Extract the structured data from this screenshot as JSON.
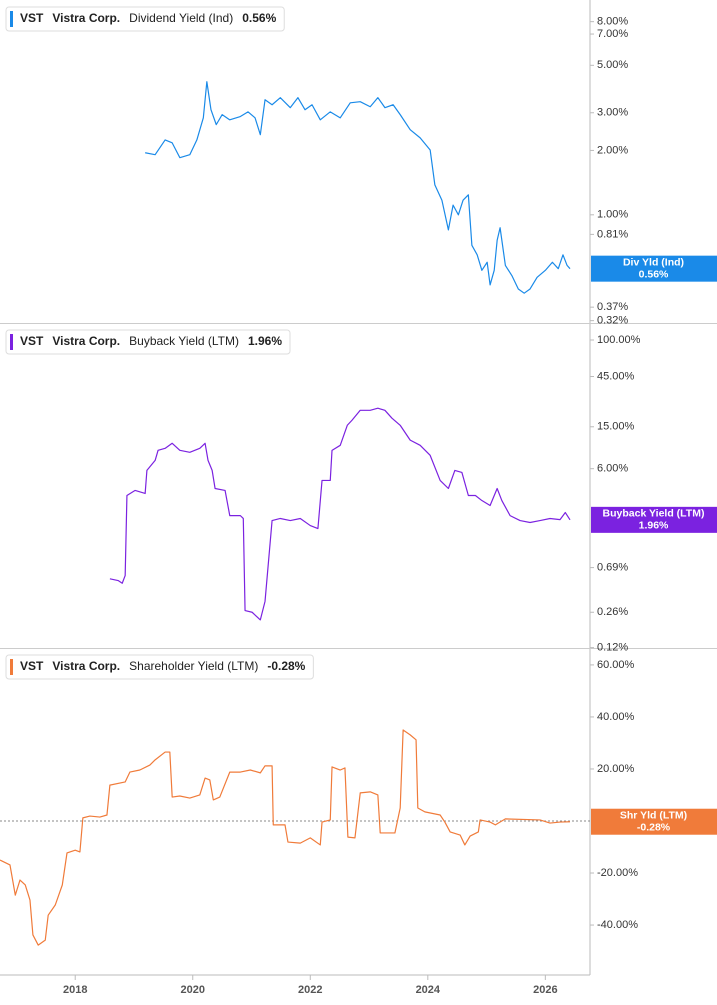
{
  "chart_data": [
    {
      "type": "line",
      "log_scale": true,
      "ticker": "VST",
      "company": "Vistra Corp.",
      "x": [
        2019.19,
        2019.36,
        2019.53,
        2019.65,
        2019.78,
        2019.95,
        2020.07,
        2020.18,
        2020.24,
        2020.31,
        2020.4,
        2020.5,
        2020.63,
        2020.81,
        2020.94,
        2021.06,
        2021.15,
        2021.23,
        2021.35,
        2021.49,
        2021.66,
        2021.79,
        2021.91,
        2022.03,
        2022.17,
        2022.34,
        2022.51,
        2022.68,
        2022.85,
        2023.02,
        2023.15,
        2023.27,
        2023.41,
        2023.53,
        2023.7,
        2023.87,
        2024.04,
        2024.12,
        2024.24,
        2024.35,
        2024.43,
        2024.52,
        2024.6,
        2024.69,
        2024.75,
        2024.84,
        2024.92,
        2025.01,
        2025.06,
        2025.13,
        2025.18,
        2025.23,
        2025.32,
        2025.43,
        2025.54,
        2025.64,
        2025.74,
        2025.86,
        2026.0,
        2026.12,
        2026.22,
        2026.3,
        2026.37,
        2026.42
      ],
      "series": [
        {
          "name": "Dividend Yield (Ind)",
          "color": "#1a8ae8",
          "values": [
            1.95,
            1.91,
            2.24,
            2.17,
            1.85,
            1.91,
            2.24,
            2.84,
            4.19,
            3.1,
            2.64,
            2.94,
            2.78,
            2.88,
            3.03,
            2.84,
            2.37,
            3.45,
            3.27,
            3.53,
            3.17,
            3.53,
            3.1,
            3.27,
            2.78,
            3.03,
            2.84,
            3.34,
            3.38,
            3.2,
            3.53,
            3.17,
            3.27,
            2.94,
            2.5,
            2.29,
            2.01,
            1.38,
            1.17,
            0.85,
            1.11,
            1.0,
            1.17,
            1.24,
            0.72,
            0.65,
            0.55,
            0.6,
            0.47,
            0.55,
            0.76,
            0.87,
            0.58,
            0.52,
            0.45,
            0.43,
            0.45,
            0.51,
            0.55,
            0.6,
            0.56,
            0.65,
            0.58,
            0.56
          ]
        }
      ],
      "badge": {
        "label": "Div Yld (Ind)",
        "value": 0.56,
        "value_label": "0.56%"
      },
      "xlim": [
        2016.72,
        2026.76
      ],
      "ylim": [
        0.312,
        10.1
      ],
      "yticks": [
        {
          "value": 8,
          "label": "8.00%"
        },
        {
          "value": 7,
          "label": "7.00%"
        },
        {
          "value": 5,
          "label": "5.00%"
        },
        {
          "value": 3,
          "label": "3.00%"
        },
        {
          "value": 2,
          "label": "2.00%"
        },
        {
          "value": 1,
          "label": "1.00%"
        },
        {
          "value": 0.81,
          "label": "0.81%"
        },
        {
          "value": 0.37,
          "label": "0.37%"
        },
        {
          "value": 0.32,
          "label": "0.32%"
        }
      ]
    },
    {
      "type": "line",
      "log_scale": true,
      "ticker": "VST",
      "company": "Vistra Corp.",
      "x": [
        2018.59,
        2018.73,
        2018.8,
        2018.85,
        2018.88,
        2019.02,
        2019.19,
        2019.22,
        2019.36,
        2019.41,
        2019.53,
        2019.65,
        2019.78,
        2019.95,
        2020.12,
        2020.21,
        2020.26,
        2020.33,
        2020.38,
        2020.55,
        2020.63,
        2020.81,
        2020.86,
        2020.89,
        2021.01,
        2021.15,
        2021.23,
        2021.35,
        2021.49,
        2021.66,
        2021.83,
        2022.0,
        2022.13,
        2022.2,
        2022.34,
        2022.37,
        2022.51,
        2022.63,
        2022.71,
        2022.85,
        2023.02,
        2023.15,
        2023.27,
        2023.39,
        2023.53,
        2023.7,
        2023.87,
        2024.04,
        2024.21,
        2024.35,
        2024.46,
        2024.58,
        2024.69,
        2024.81,
        2024.92,
        2025.06,
        2025.18,
        2025.26,
        2025.4,
        2025.57,
        2025.74,
        2025.91,
        2026.08,
        2026.25,
        2026.34,
        2026.42
      ],
      "series": [
        {
          "name": "Buyback Yield (LTM)",
          "color": "#7b22e0",
          "values": [
            0.54,
            0.52,
            0.49,
            0.58,
            3.34,
            3.73,
            3.49,
            5.78,
            7.19,
            8.96,
            9.36,
            10.45,
            8.96,
            8.58,
            9.36,
            10.45,
            7.19,
            5.78,
            3.89,
            3.73,
            2.15,
            2.15,
            2.02,
            0.27,
            0.26,
            0.22,
            0.33,
            1.93,
            2.02,
            1.93,
            2.02,
            1.73,
            1.62,
            4.64,
            4.64,
            8.96,
            10.0,
            15.5,
            17.3,
            21.5,
            21.5,
            22.5,
            21.5,
            18.1,
            15.5,
            11.2,
            10.0,
            8.03,
            4.64,
            3.89,
            5.78,
            5.53,
            3.34,
            3.34,
            2.99,
            2.68,
            3.89,
            2.99,
            2.15,
            1.93,
            1.85,
            1.93,
            2.02,
            1.97,
            2.3,
            1.96
          ]
        }
      ],
      "badge": {
        "label": "Buyback Yield (LTM)",
        "value": 1.96,
        "value_label": "1.96%"
      },
      "xlim": [
        2016.72,
        2026.76
      ],
      "ylim": [
        0.119,
        145
      ],
      "yticks": [
        {
          "value": 100,
          "label": "100.00%"
        },
        {
          "value": 45,
          "label": "45.00%"
        },
        {
          "value": 15,
          "label": "15.00%"
        },
        {
          "value": 6,
          "label": "6.00%"
        },
        {
          "value": 0.69,
          "label": "0.69%"
        },
        {
          "value": 0.26,
          "label": "0.26%"
        },
        {
          "value": 0.12,
          "label": "0.12%"
        }
      ]
    },
    {
      "type": "line",
      "log_scale": false,
      "zero_line": true,
      "ticker": "VST",
      "company": "Vistra Corp.",
      "x": [
        2016.72,
        2016.89,
        2016.98,
        2017.06,
        2017.15,
        2017.23,
        2017.28,
        2017.37,
        2017.49,
        2017.54,
        2017.66,
        2017.78,
        2017.86,
        2018.0,
        2018.08,
        2018.13,
        2018.25,
        2018.42,
        2018.54,
        2018.59,
        2018.85,
        2018.93,
        2019.1,
        2019.27,
        2019.36,
        2019.53,
        2019.61,
        2019.65,
        2019.78,
        2019.95,
        2020.12,
        2020.21,
        2020.29,
        2020.35,
        2020.46,
        2020.63,
        2020.81,
        2020.98,
        2021.15,
        2021.23,
        2021.35,
        2021.37,
        2021.57,
        2021.62,
        2021.83,
        2022.0,
        2022.17,
        2022.2,
        2022.34,
        2022.37,
        2022.51,
        2022.59,
        2022.64,
        2022.76,
        2022.85,
        2023.02,
        2023.15,
        2023.19,
        2023.44,
        2023.53,
        2023.58,
        2023.7,
        2023.8,
        2023.83,
        2023.95,
        2024.21,
        2024.29,
        2024.38,
        2024.55,
        2024.63,
        2024.72,
        2024.86,
        2024.89,
        2025.06,
        2025.15,
        2025.23,
        2025.32,
        2025.91,
        2026.08,
        2026.25,
        2026.42
      ],
      "series": [
        {
          "name": "Shareholder Yield (LTM)",
          "color": "#f07b3a",
          "values": [
            -15.0,
            -16.9,
            -28.5,
            -22.7,
            -24.6,
            -30.4,
            -43.8,
            -47.7,
            -45.8,
            -36.2,
            -32.3,
            -24.6,
            -12.3,
            -11.2,
            -11.9,
            1.2,
            1.9,
            1.5,
            2.3,
            13.8,
            15.0,
            18.8,
            19.6,
            21.5,
            23.5,
            26.5,
            26.5,
            9.2,
            9.6,
            8.8,
            10.0,
            16.5,
            15.8,
            8.1,
            9.2,
            18.8,
            18.8,
            19.6,
            18.5,
            21.2,
            21.2,
            -1.5,
            -1.5,
            -8.1,
            -8.5,
            -6.5,
            -9.2,
            -0.4,
            0.4,
            20.8,
            19.6,
            20.4,
            -6.2,
            -6.5,
            10.8,
            11.2,
            10.0,
            -4.6,
            -4.6,
            5.0,
            35.0,
            33.1,
            31.2,
            5.0,
            3.5,
            2.3,
            -0.4,
            -4.2,
            -5.4,
            -9.2,
            -5.8,
            -4.2,
            0.4,
            -0.4,
            -1.5,
            -0.4,
            0.8,
            0.4,
            -0.8,
            -0.4,
            -0.28
          ]
        }
      ],
      "badge": {
        "label": "Shr Yld (LTM)",
        "value": -0.28,
        "value_label": "-0.28%"
      },
      "xlim": [
        2016.72,
        2026.76
      ],
      "ylim": [
        -59.2,
        66.5
      ],
      "yticks": [
        {
          "value": 60,
          "label": "60.00%"
        },
        {
          "value": 40,
          "label": "40.00%"
        },
        {
          "value": 20,
          "label": "20.00%"
        },
        {
          "value": -20,
          "label": "-20.00%"
        },
        {
          "value": -40,
          "label": "-40.00%"
        }
      ],
      "xticks": [
        2018,
        2020,
        2022,
        2024,
        2026
      ]
    }
  ]
}
